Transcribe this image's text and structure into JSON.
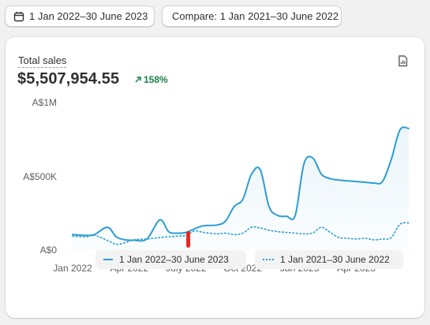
{
  "filters": {
    "date_range_label": "1 Jan 2022–30 June 2023",
    "compare_label": "Compare: 1 Jan 2021–30 June 2022"
  },
  "card": {
    "title": "Total sales",
    "value": "$5,507,954.55",
    "change": "158%",
    "change_color": "#1a7f4b"
  },
  "icons": {
    "date": "calendar-icon",
    "export": "export-icon",
    "change": "arrow-up-right-icon"
  },
  "chart_data": {
    "type": "line",
    "y_tick_labels": [
      "A$0",
      "A$500K",
      "A$1M"
    ],
    "y_ticks": [
      0,
      500000,
      1000000
    ],
    "ylim": [
      0,
      1000000
    ],
    "x_tick_labels": [
      "Jan 2022",
      "Apr 2022",
      "July 2022",
      "Oct 2022",
      "Jan 2023",
      "Apr 2023"
    ],
    "x_tick_positions": [
      0,
      13,
      26,
      39,
      52,
      65
    ],
    "xlim": [
      0,
      77
    ],
    "legend_position": "bottom",
    "series": [
      {
        "name": "1 Jan 2022–30 June 2023",
        "style": "solid",
        "color": "#2d9dd2",
        "fill": true,
        "x": [
          0,
          3,
          5,
          8,
          10,
          12,
          14,
          17,
          20,
          22,
          24,
          26,
          28,
          30,
          33,
          35,
          37,
          39,
          41,
          43,
          45,
          47,
          49,
          51,
          53,
          55,
          57,
          59,
          61,
          63,
          65,
          67,
          69,
          71,
          73,
          75,
          77
        ],
        "y": [
          110000,
          105000,
          110000,
          160000,
          95000,
          75000,
          72000,
          80000,
          210000,
          130000,
          120000,
          125000,
          150000,
          170000,
          175000,
          200000,
          300000,
          350000,
          520000,
          550000,
          300000,
          240000,
          235000,
          240000,
          590000,
          630000,
          520000,
          490000,
          480000,
          475000,
          470000,
          465000,
          460000,
          470000,
          620000,
          820000,
          830000
        ]
      },
      {
        "name": "1 Jan 2021–30 June 2022",
        "style": "dotted",
        "color": "#2d9dd2",
        "fill": false,
        "x": [
          0,
          3,
          5,
          8,
          10,
          12,
          14,
          17,
          20,
          22,
          24,
          26,
          28,
          30,
          33,
          35,
          37,
          39,
          41,
          43,
          45,
          47,
          49,
          51,
          53,
          55,
          57,
          59,
          61,
          63,
          65,
          67,
          69,
          71,
          73,
          75,
          77
        ],
        "y": [
          100000,
          95000,
          105000,
          70000,
          45000,
          55000,
          75000,
          80000,
          90000,
          95000,
          100000,
          105000,
          135000,
          125000,
          115000,
          120000,
          110000,
          120000,
          160000,
          155000,
          140000,
          130000,
          125000,
          120000,
          115000,
          120000,
          160000,
          125000,
          90000,
          85000,
          80000,
          85000,
          75000,
          80000,
          90000,
          180000,
          190000
        ]
      }
    ]
  }
}
